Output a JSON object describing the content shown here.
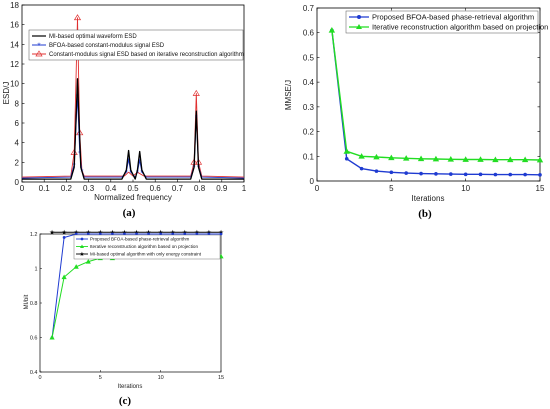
{
  "chart_data": [
    {
      "type": "line",
      "caption": "(a)",
      "xlabel": "Normalized frequency",
      "ylabel": "ESD/J",
      "xlim": [
        0,
        1
      ],
      "ylim": [
        0,
        18
      ],
      "xticks": [
        "0",
        "0.1",
        "0.2",
        "0.3",
        "0.4",
        "0.5",
        "0.6",
        "0.7",
        "0.8",
        "0.9",
        "1"
      ],
      "yticks": [
        "0",
        "2",
        "4",
        "6",
        "8",
        "10",
        "12",
        "14",
        "16",
        "18"
      ],
      "legend_position": "top-right",
      "series": [
        {
          "name": "MI-based optimal waveform ESD",
          "color": "#000000",
          "points": [
            [
              0,
              0.3
            ],
            [
              0.22,
              0.3
            ],
            [
              0.235,
              1.5
            ],
            [
              0.25,
              10.5
            ],
            [
              0.265,
              1.5
            ],
            [
              0.28,
              0.3
            ],
            [
              0.45,
              0.3
            ],
            [
              0.47,
              1.2
            ],
            [
              0.48,
              3.2
            ],
            [
              0.49,
              1.2
            ],
            [
              0.51,
              0.3
            ],
            [
              0.52,
              1.2
            ],
            [
              0.53,
              3.1
            ],
            [
              0.54,
              1.2
            ],
            [
              0.56,
              0.3
            ],
            [
              0.76,
              0.3
            ],
            [
              0.775,
              1.5
            ],
            [
              0.785,
              7.2
            ],
            [
              0.795,
              1.5
            ],
            [
              0.81,
              0.3
            ],
            [
              1,
              0.3
            ]
          ]
        },
        {
          "name": "BFOA-based constant-modulus signal ESD",
          "color": "#1f3bd1",
          "points": [
            [
              0,
              0.4
            ],
            [
              0.22,
              0.5
            ],
            [
              0.235,
              1.8
            ],
            [
              0.25,
              8.8
            ],
            [
              0.26,
              3
            ],
            [
              0.27,
              1.1
            ],
            [
              0.28,
              0.5
            ],
            [
              0.45,
              0.5
            ],
            [
              0.47,
              1
            ],
            [
              0.48,
              2.3
            ],
            [
              0.49,
              1
            ],
            [
              0.51,
              0.5
            ],
            [
              0.52,
              1
            ],
            [
              0.53,
              2.2
            ],
            [
              0.54,
              1
            ],
            [
              0.56,
              0.5
            ],
            [
              0.76,
              0.5
            ],
            [
              0.775,
              1.6
            ],
            [
              0.785,
              6.6
            ],
            [
              0.795,
              1.6
            ],
            [
              0.81,
              0.5
            ],
            [
              1,
              0.4
            ]
          ]
        },
        {
          "name": "Constant-modulus signal ESD based on iterative reconstruction algorithm",
          "color": "#e03030",
          "points": [
            [
              0,
              0.5
            ],
            [
              0.22,
              0.6
            ],
            [
              0.235,
              3
            ],
            [
              0.25,
              16.7
            ],
            [
              0.26,
              5
            ],
            [
              0.27,
              1.2
            ],
            [
              0.28,
              0.6
            ],
            [
              0.46,
              0.6
            ],
            [
              0.48,
              1
            ],
            [
              0.5,
              0.6
            ],
            [
              0.52,
              1
            ],
            [
              0.55,
              0.6
            ],
            [
              0.76,
              0.6
            ],
            [
              0.775,
              2
            ],
            [
              0.785,
              9
            ],
            [
              0.795,
              2
            ],
            [
              0.81,
              0.6
            ],
            [
              1,
              0.5
            ]
          ]
        }
      ]
    },
    {
      "type": "line",
      "caption": "(b)",
      "xlabel": "Iterations",
      "ylabel": "MMSE/J",
      "xlim": [
        0,
        15
      ],
      "ylim": [
        0,
        0.7
      ],
      "xticks": [
        "0",
        "5",
        "10",
        "15"
      ],
      "yticks": [
        "0",
        "0.1",
        "0.2",
        "0.3",
        "0.4",
        "0.5",
        "0.6",
        "0.7"
      ],
      "legend_position": "top-right",
      "x": [
        1,
        2,
        3,
        4,
        5,
        6,
        7,
        8,
        9,
        10,
        11,
        12,
        13,
        14,
        15
      ],
      "series": [
        {
          "name": "Proposed BFOA-based phase-retrieval algorithm",
          "color": "#1f3bd1",
          "values": [
            0.61,
            0.09,
            0.05,
            0.04,
            0.035,
            0.032,
            0.03,
            0.029,
            0.028,
            0.027,
            0.027,
            0.026,
            0.026,
            0.026,
            0.025
          ]
        },
        {
          "name": "Iterative reconstruction algorithm based on projection",
          "color": "#22dd22",
          "values": [
            0.61,
            0.12,
            0.1,
            0.097,
            0.094,
            0.092,
            0.09,
            0.089,
            0.088,
            0.087,
            0.087,
            0.086,
            0.086,
            0.086,
            0.085
          ]
        }
      ]
    },
    {
      "type": "line",
      "caption": "(c)",
      "xlabel": "Iterations",
      "ylabel": "MI/bit",
      "xlim": [
        0,
        15
      ],
      "ylim": [
        0.4,
        1.2
      ],
      "xticks": [
        "0",
        "5",
        "10",
        "15"
      ],
      "yticks": [
        "0.4",
        "0.6",
        "0.8",
        "1",
        "1.2"
      ],
      "legend_position": "top-right",
      "x": [
        1,
        2,
        3,
        4,
        5,
        6,
        7,
        8,
        9,
        10,
        11,
        12,
        13,
        14,
        15
      ],
      "series": [
        {
          "name": "Proposed BFOA-based phase-retrieval algorithm",
          "color": "#1f3bd1",
          "values": [
            0.6,
            1.18,
            1.2,
            1.2,
            1.2,
            1.2,
            1.2,
            1.2,
            1.2,
            1.2,
            1.2,
            1.2,
            1.2,
            1.2,
            1.2
          ]
        },
        {
          "name": "Iterative reconstruction algorithm based on projection",
          "color": "#22dd22",
          "values": [
            0.6,
            0.95,
            1.01,
            1.04,
            1.06,
            1.06,
            1.07,
            1.07,
            1.07,
            1.07,
            1.07,
            1.07,
            1.07,
            1.07,
            1.07
          ]
        },
        {
          "name": "MI-based optimal algorithm with only energy constraint",
          "color": "#000000",
          "values": [
            1.21,
            1.21,
            1.21,
            1.21,
            1.21,
            1.21,
            1.21,
            1.21,
            1.21,
            1.21,
            1.21,
            1.21,
            1.21,
            1.21,
            1.21
          ]
        }
      ]
    }
  ]
}
